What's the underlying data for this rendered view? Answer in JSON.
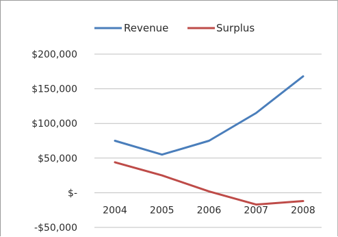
{
  "chart_data": {
    "type": "line",
    "categories": [
      "2004",
      "2005",
      "2006",
      "2007",
      "2008"
    ],
    "series": [
      {
        "name": "Revenue",
        "color": "#4a7ebb",
        "values": [
          75000,
          55000,
          75000,
          115000,
          168000
        ]
      },
      {
        "name": "Surplus",
        "color": "#be4b48",
        "values": [
          44000,
          25000,
          2000,
          -17000,
          -12000
        ]
      }
    ],
    "yaxis": {
      "ticks": [
        -50000,
        0,
        50000,
        100000,
        150000,
        200000
      ],
      "tick_labels": [
        "-$50,000",
        "$-",
        "$50,000",
        "$100,000",
        "$150,000",
        "$200,000"
      ],
      "ylim": [
        -50000,
        200000
      ]
    },
    "grid": true,
    "gridline_color": "#bfbfbf",
    "legend_position": "top",
    "title": "",
    "xlabel": "",
    "ylabel": ""
  }
}
